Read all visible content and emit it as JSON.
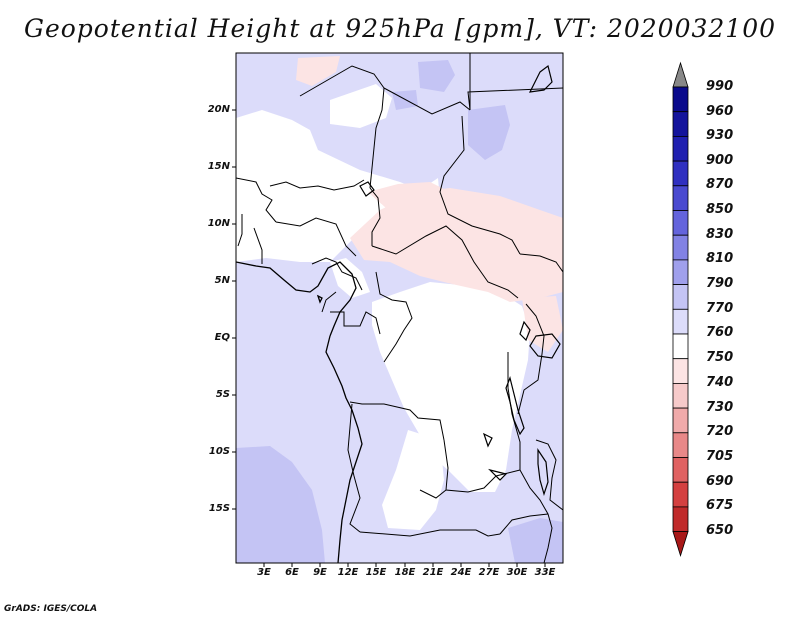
{
  "title": "Geopotential Height at 925hPa [gpm], VT: 2020032100",
  "credit": "GrADS: IGES/COLA",
  "map": {
    "lat_labels": [
      "20N",
      "15N",
      "10N",
      "5N",
      "EQ",
      "5S",
      "10S",
      "15S"
    ],
    "lon_labels": [
      "3E",
      "6E",
      "9E",
      "12E",
      "15E",
      "18E",
      "21E",
      "24E",
      "27E",
      "30E",
      "33E"
    ],
    "region": "Central Africa"
  },
  "colorbar": {
    "levels": [
      "990",
      "960",
      "930",
      "900",
      "870",
      "850",
      "830",
      "810",
      "790",
      "770",
      "760",
      "750",
      "740",
      "730",
      "720",
      "705",
      "690",
      "675",
      "650"
    ],
    "colors": [
      "#0a0a8c",
      "#14149c",
      "#2020b0",
      "#3030c0",
      "#4a4ad0",
      "#6464dc",
      "#8282e4",
      "#a0a0ec",
      "#c4c4f4",
      "#dcdcfa",
      "#ffffff",
      "#fce4e4",
      "#f6caca",
      "#f0aaaa",
      "#e88888",
      "#e06262",
      "#d44040",
      "#c02a2a",
      "#a81818"
    ],
    "under_color": "#a81818",
    "over_color": "#888888"
  },
  "chart_data": {
    "type": "heatmap",
    "title": "Geopotential Height at 925hPa [gpm], VT: 2020032100",
    "variable": "Geopotential Height",
    "level": "925hPa",
    "units": "gpm",
    "valid_time": "2020032100",
    "lon_range": [
      0,
      34.5
    ],
    "lat_range": [
      -20,
      24
    ],
    "legend_levels": [
      650,
      675,
      690,
      705,
      720,
      730,
      740,
      750,
      760,
      770,
      790,
      810,
      830,
      850,
      870,
      900,
      930,
      960,
      990
    ],
    "dominant_classes": [
      "760-770",
      "770-790",
      "750-760",
      "790-810"
    ]
  }
}
